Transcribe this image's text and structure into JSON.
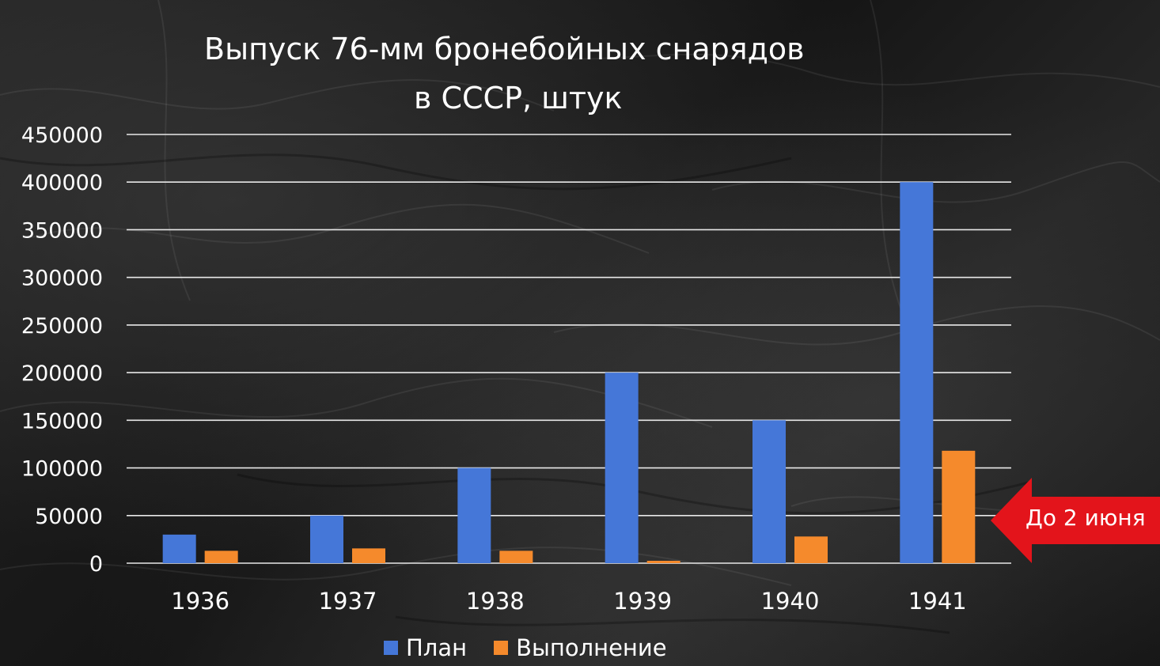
{
  "colors": {
    "plan": "#4577d8",
    "actual": "#f58a2c",
    "grid": "#e8e8e8",
    "text": "#ffffff",
    "callout": "#e3141b"
  },
  "annotation": "До 2 июня",
  "chart_data": {
    "type": "bar",
    "title": "Выпуск 76-мм бронебойных снарядов\nв СССР, штук",
    "title_lines": [
      "Выпуск 76-мм бронебойных снарядов",
      "в СССР, штук"
    ],
    "categories": [
      "1936",
      "1937",
      "1938",
      "1939",
      "1940",
      "1941"
    ],
    "series": [
      {
        "name": "План",
        "values": [
          30000,
          50000,
          100000,
          200000,
          150000,
          400000
        ]
      },
      {
        "name": "Выполнение",
        "values": [
          13000,
          15500,
          13000,
          2500,
          28000,
          118000
        ]
      }
    ],
    "ylim": [
      0,
      450000
    ],
    "yticks": [
      "0",
      "50000",
      "100000",
      "150000",
      "200000",
      "250000",
      "300000",
      "350000",
      "400000",
      "450000"
    ],
    "xlabel": "",
    "ylabel": "",
    "grid": true,
    "legend": "bottom"
  }
}
